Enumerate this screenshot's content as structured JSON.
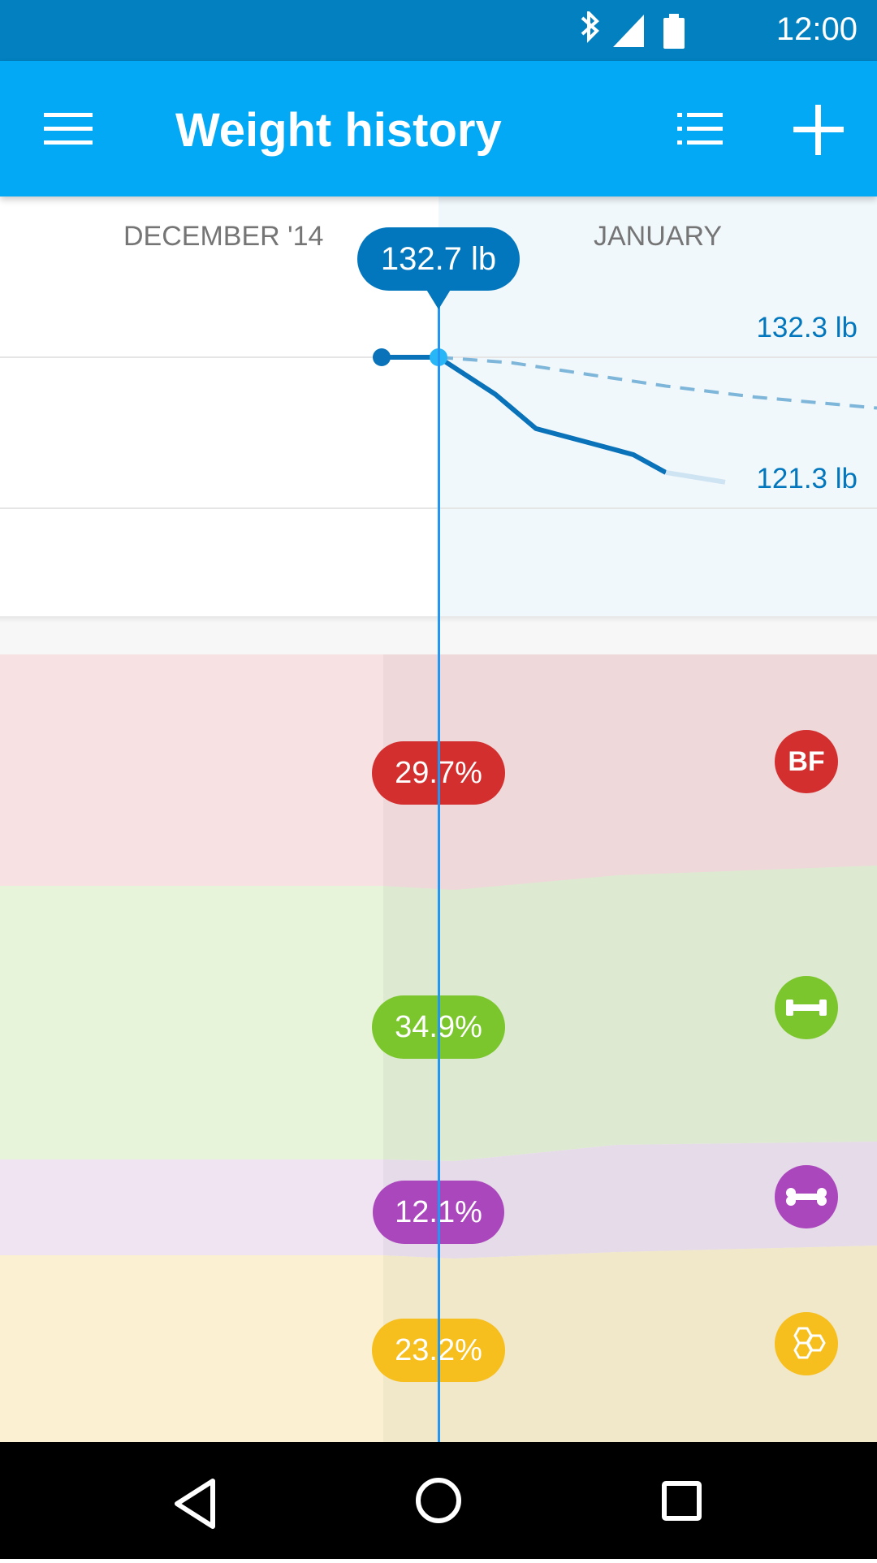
{
  "status_bar": {
    "time": "12:00"
  },
  "app_bar": {
    "title": "Weight history",
    "menu_icon": "menu-icon",
    "list_icon": "list-icon",
    "add_icon": "add-icon"
  },
  "chart": {
    "month_left": "DECEMBER '14",
    "month_right": "JANUARY",
    "tooltip": "132.7 lb",
    "label_upper": "132.3 lb",
    "label_lower": "121.3 lb"
  },
  "composition": {
    "body_fat": {
      "value": "29.7%",
      "badge": "BF",
      "color": "#d32f2f"
    },
    "muscle": {
      "value": "34.9%",
      "icon": "dumbbell-icon",
      "color": "#7cc62d"
    },
    "bone": {
      "value": "12.1%",
      "icon": "bone-icon",
      "color": "#ab47bc"
    },
    "fat_cells": {
      "value": "23.2%",
      "icon": "hexagon-cells-icon",
      "color": "#f6bf1e"
    }
  },
  "chart_data": {
    "type": "line",
    "series": [
      {
        "values": [
          132.7,
          132.7,
          130.0,
          127.5,
          126.4,
          125.6,
          124.3,
          123.6
        ]
      },
      {
        "values": [
          132.7,
          132.3,
          131.4,
          130.6,
          129.8,
          129.0
        ]
      }
    ],
    "annotations": [
      "132.7 lb",
      "132.3 lb",
      "121.3 lb"
    ]
  }
}
